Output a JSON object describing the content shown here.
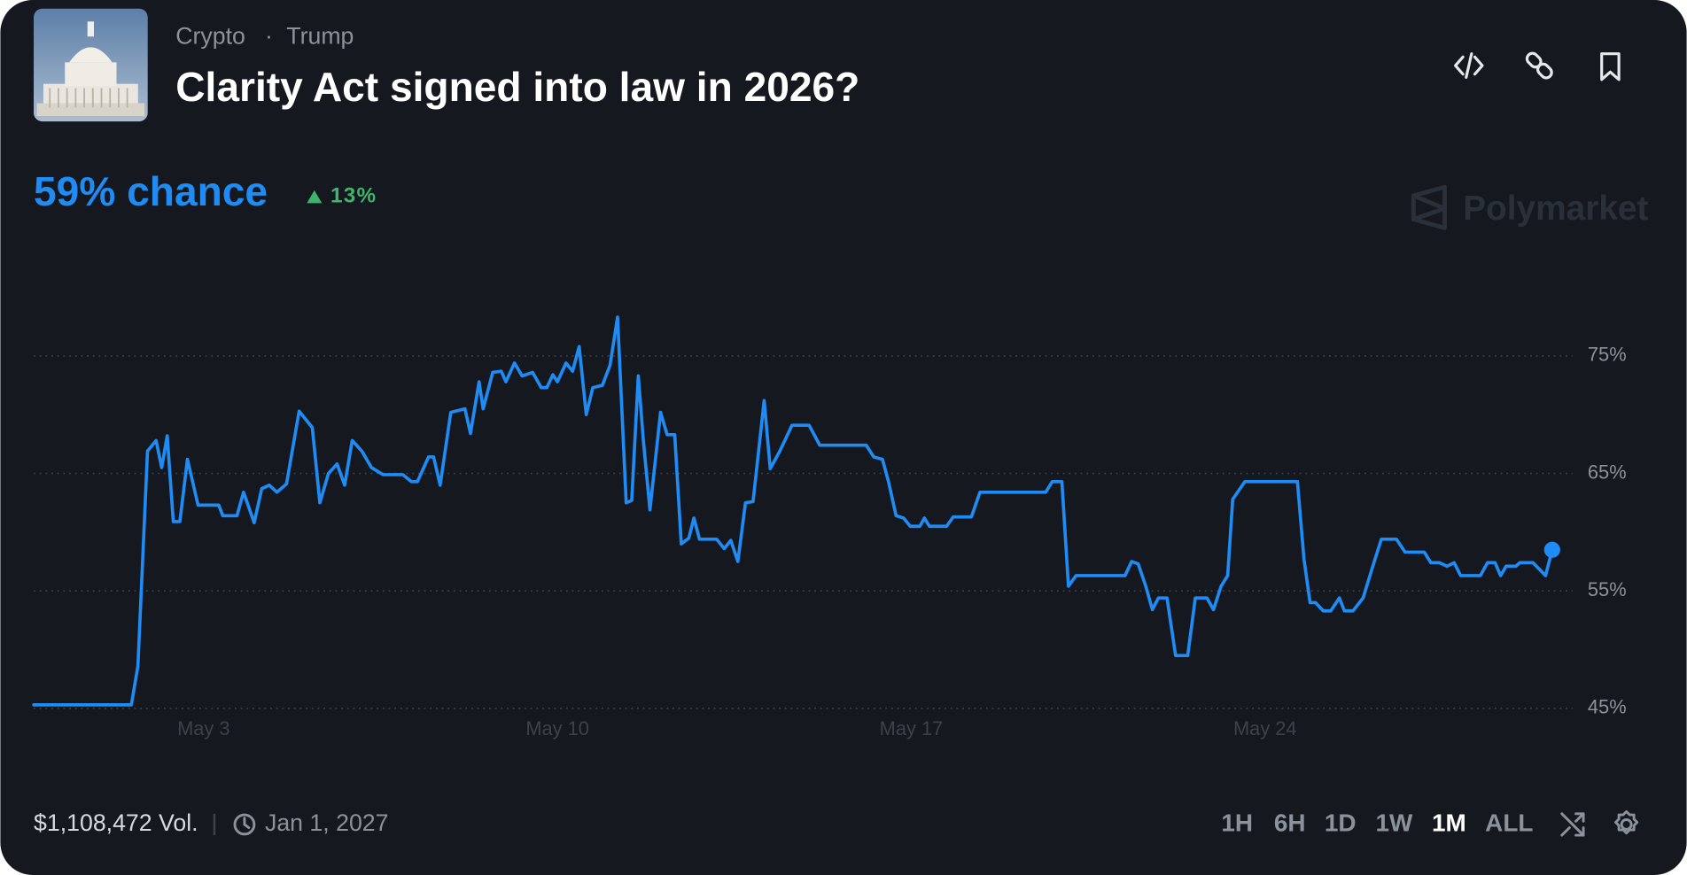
{
  "header": {
    "category": "Crypto",
    "separator": "·",
    "subcategory": "Trump",
    "title": "Clarity Act signed into law in 2026?"
  },
  "summary": {
    "chance": "59% chance",
    "change": "13%"
  },
  "brand": "Polymarket",
  "chart_data": {
    "type": "line",
    "x": [
      -0.36,
      1.57,
      1.7,
      1.89,
      2.06,
      2.17,
      2.28,
      2.4,
      2.53,
      2.68,
      2.89,
      2.98,
      3.3,
      3.38,
      3.66,
      3.79,
      4.0,
      4.15,
      4.3,
      4.45,
      4.64,
      4.89,
      5.15,
      5.3,
      5.47,
      5.64,
      5.79,
      5.94,
      6.13,
      6.32,
      6.55,
      6.94,
      7.11,
      7.23,
      7.45,
      7.55,
      7.68,
      7.89,
      8.17,
      8.28,
      8.45,
      8.53,
      8.72,
      8.89,
      8.98,
      9.15,
      9.3,
      9.51,
      9.68,
      9.79,
      9.91,
      10.0,
      10.17,
      10.3,
      10.43,
      10.57,
      10.7,
      10.89,
      11.04,
      11.19,
      11.36,
      11.47,
      11.6,
      11.7,
      11.83,
      12.04,
      12.17,
      12.32,
      12.45,
      12.6,
      12.7,
      12.81,
      13.15,
      13.3,
      13.43,
      13.57,
      13.72,
      13.87,
      14.09,
      14.21,
      14.4,
      14.64,
      14.98,
      15.19,
      16.11,
      16.26,
      16.43,
      16.55,
      16.7,
      16.85,
      16.98,
      17.17,
      17.26,
      17.36,
      17.7,
      17.83,
      18.19,
      18.36,
      19.66,
      19.79,
      19.98,
      20.11,
      20.26,
      21.23,
      21.36,
      21.49,
      21.64,
      21.77,
      21.89,
      22.06,
      22.23,
      22.47,
      22.62,
      22.85,
      22.98,
      23.13,
      23.26,
      23.36,
      23.6,
      24.64,
      24.77,
      24.89,
      25.0,
      25.15,
      25.3,
      25.47,
      25.57,
      25.74,
      25.94,
      26.11,
      26.3,
      26.6,
      26.77,
      27.15,
      27.28,
      27.45,
      27.6,
      27.74,
      27.87,
      28.26,
      28.4,
      28.55,
      28.66,
      28.77,
      28.96,
      29.04,
      29.3,
      29.55,
      29.68
    ],
    "series": [
      {
        "color": "#1f8cf5",
        "values": [
          45.3,
          45.3,
          48.6,
          66.9,
          67.8,
          65.5,
          68.2,
          60.9,
          60.9,
          66.2,
          62.3,
          62.3,
          62.3,
          61.4,
          61.4,
          63.4,
          60.8,
          63.7,
          64.0,
          63.4,
          64.1,
          70.3,
          68.9,
          62.5,
          65.0,
          65.8,
          64.0,
          67.8,
          66.9,
          65.5,
          64.9,
          64.9,
          64.3,
          64.3,
          66.4,
          66.4,
          64.0,
          70.2,
          70.5,
          68.4,
          72.8,
          70.5,
          73.6,
          73.7,
          72.8,
          74.4,
          73.3,
          73.6,
          72.3,
          72.3,
          73.4,
          72.8,
          74.4,
          73.7,
          75.8,
          70.0,
          72.3,
          72.5,
          74.2,
          78.3,
          62.5,
          62.7,
          73.3,
          67.8,
          61.9,
          70.2,
          68.3,
          68.3,
          59.0,
          59.5,
          61.2,
          59.4,
          59.4,
          58.6,
          59.3,
          57.5,
          62.5,
          62.6,
          71.2,
          65.4,
          66.9,
          69.1,
          69.1,
          67.4,
          67.4,
          66.4,
          66.2,
          64.3,
          61.4,
          61.2,
          60.5,
          60.5,
          61.2,
          60.5,
          60.5,
          61.3,
          61.3,
          63.4,
          63.4,
          64.3,
          64.3,
          55.4,
          56.3,
          56.3,
          57.5,
          57.3,
          55.4,
          53.4,
          54.4,
          54.4,
          49.5,
          49.5,
          54.4,
          54.4,
          53.4,
          55.4,
          56.3,
          62.8,
          64.3,
          64.3,
          57.7,
          54.0,
          54.0,
          53.3,
          53.3,
          54.4,
          53.3,
          53.3,
          54.4,
          56.8,
          59.4,
          59.4,
          58.3,
          58.3,
          57.4,
          57.4,
          57.1,
          57.4,
          56.3,
          56.3,
          57.4,
          57.4,
          56.3,
          57.1,
          57.1,
          57.4,
          57.4,
          56.3,
          58.5
        ]
      }
    ],
    "xlim": [
      -0.4,
      30
    ],
    "xticks": [
      {
        "value": 3,
        "label": "May 3"
      },
      {
        "value": 10,
        "label": "May 10"
      },
      {
        "value": 17,
        "label": "May 17"
      },
      {
        "value": 24,
        "label": "May 24"
      }
    ],
    "ylim": [
      41,
      83
    ],
    "yticks": [
      {
        "value": 45,
        "label": "45%"
      },
      {
        "value": 55,
        "label": "55%"
      },
      {
        "value": 65,
        "label": "65%"
      },
      {
        "value": 75,
        "label": "75%"
      }
    ],
    "grid": true
  },
  "footer": {
    "volume": "$1,108,472 Vol.",
    "end_date": "Jan 1, 2027",
    "ranges": [
      "1H",
      "6H",
      "1D",
      "1W",
      "1M",
      "ALL"
    ]
  }
}
